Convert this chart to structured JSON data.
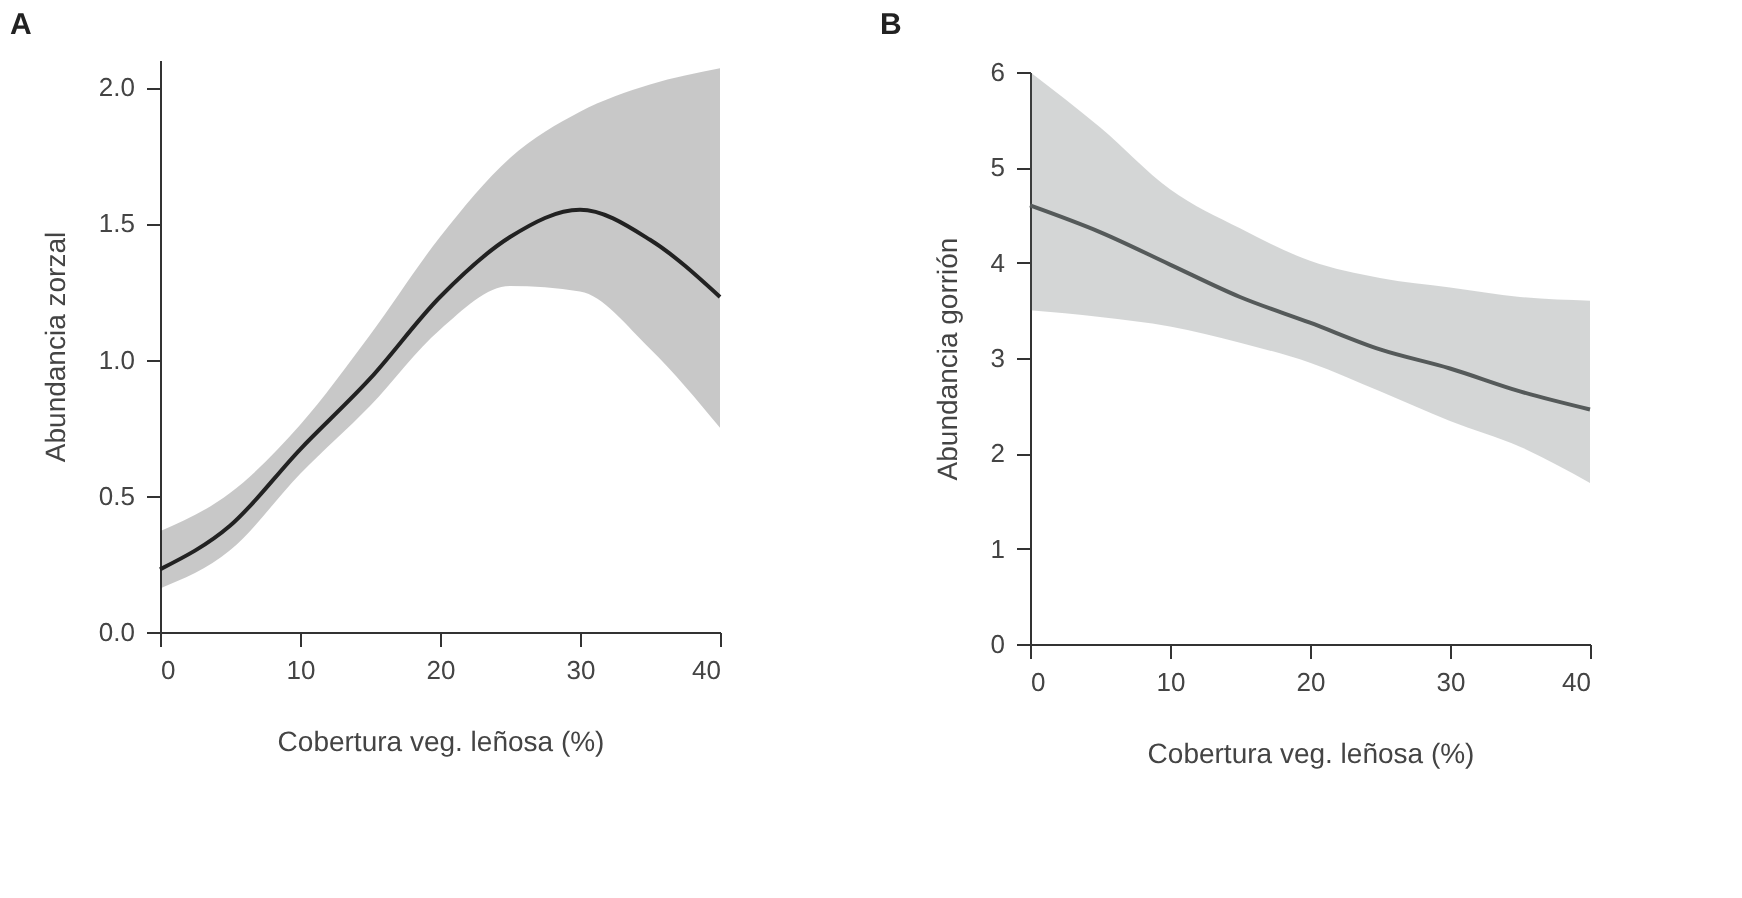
{
  "chart_data": [
    {
      "type": "line",
      "title": "A",
      "xlabel": "Cobertura veg. leñosa (%)",
      "ylabel": "Abundancia zorzal",
      "x": [
        0,
        5,
        10,
        15,
        20,
        25,
        30,
        35,
        40
      ],
      "xlim": [
        0,
        40
      ],
      "xticks": [
        0,
        10,
        20,
        30,
        40
      ],
      "ylim": [
        0,
        2.1
      ],
      "yticks": [
        {
          "value": 0,
          "label": "0.0"
        },
        {
          "value": 0.5,
          "label": "0.5"
        },
        {
          "value": 1,
          "label": "1.0"
        },
        {
          "value": 1.5,
          "label": "1.5"
        },
        {
          "value": 2,
          "label": "2.0"
        }
      ],
      "grid": false,
      "series": [
        {
          "color": "#222222",
          "values": [
            0.23,
            0.39,
            0.67,
            0.93,
            1.23,
            1.45,
            1.55,
            1.44,
            1.23
          ],
          "lower": [
            0.16,
            0.3,
            0.58,
            0.83,
            1.11,
            1.27,
            1.25,
            1.04,
            0.75
          ],
          "upper": [
            0.37,
            0.51,
            0.76,
            1.09,
            1.45,
            1.74,
            1.91,
            2.01,
            2.07
          ]
        }
      ]
    },
    {
      "type": "line",
      "title": "B",
      "xlabel": "Cobertura veg. leñosa (%)",
      "ylabel": "Abundancia gorrión",
      "x": [
        0,
        5,
        10,
        15,
        20,
        25,
        30,
        35,
        40
      ],
      "xlim": [
        0,
        40
      ],
      "xticks": [
        0,
        10,
        20,
        30,
        40
      ],
      "ylim": [
        0,
        6
      ],
      "yticks": [
        0,
        1,
        2,
        3,
        4,
        5,
        6
      ],
      "grid": false,
      "series": [
        {
          "color": "#555a5a",
          "values": [
            4.6,
            4.32,
            3.98,
            3.64,
            3.37,
            3.09,
            2.89,
            2.65,
            2.46
          ],
          "lower": [
            3.5,
            3.43,
            3.33,
            3.16,
            2.95,
            2.65,
            2.34,
            2.07,
            1.69
          ],
          "upper": [
            6.0,
            5.42,
            4.77,
            4.36,
            4.02,
            3.84,
            3.74,
            3.64,
            3.6
          ]
        }
      ]
    }
  ]
}
